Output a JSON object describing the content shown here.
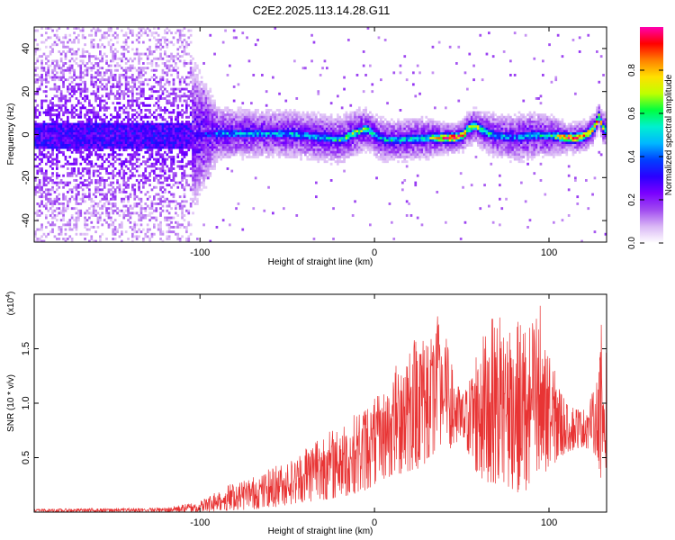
{
  "title": "C2E2.2025.113.14.28.G11",
  "chart_data": [
    {
      "type": "heatmap",
      "xlabel": "Height of straight line (km)",
      "ylabel": "Frequency (Hz)",
      "xlim": [
        -195,
        133
      ],
      "ylim": [
        -50,
        50
      ],
      "xticks": [
        -100,
        0,
        100
      ],
      "yticks": [
        -40,
        -20,
        0,
        20,
        40
      ],
      "colorbar": {
        "label": "Normalized spectral amplitude",
        "range": [
          0.0,
          1.0
        ],
        "ticks": [
          0.0,
          0.2,
          0.4,
          0.6,
          0.8
        ],
        "tick_labels": [
          "0.0",
          "0.2",
          "0.4",
          "0.6",
          "0.8"
        ],
        "colormap": [
          "#ffffff",
          "#d9b6f5",
          "#a04af0",
          "#7a00ff",
          "#2a00ff",
          "#0040ff",
          "#00b8ff",
          "#00f0d0",
          "#00ff40",
          "#c0ff00",
          "#ffe000",
          "#ff8000",
          "#ff0000",
          "#ff00b0"
        ]
      },
      "ridge": {
        "description": "peak frequency track (Hz) vs height (km)",
        "x": [
          -195,
          -150,
          -110,
          -90,
          -70,
          -50,
          -30,
          -20,
          -10,
          -5,
          0,
          5,
          15,
          30,
          40,
          45,
          50,
          53,
          57,
          60,
          65,
          70,
          80,
          90,
          100,
          110,
          115,
          120,
          125,
          128,
          130,
          133
        ],
        "y": [
          0,
          0,
          0,
          1,
          1,
          1,
          -1,
          -2,
          2,
          3,
          0,
          -2,
          -2,
          -1,
          -1,
          -1,
          0,
          3,
          5,
          3,
          1,
          0,
          -1,
          0,
          0,
          -1,
          -1,
          0,
          3,
          9,
          4,
          2
        ],
        "peak_amplitude_approx": [
          0.1,
          0.15,
          0.2,
          0.45,
          0.5,
          0.5,
          0.5,
          0.6,
          0.65,
          0.65,
          0.5,
          0.5,
          0.55,
          0.6,
          0.9,
          0.95,
          0.85,
          0.75,
          0.7,
          0.65,
          0.6,
          0.5,
          0.45,
          0.5,
          0.55,
          0.95,
          0.95,
          0.9,
          0.8,
          0.85,
          0.7,
          0.6
        ],
        "spread_hz": [
          40,
          40,
          35,
          10,
          9,
          9,
          9,
          9,
          9,
          8,
          8,
          8,
          8,
          8,
          6,
          6,
          6,
          7,
          7,
          7,
          8,
          8,
          9,
          9,
          8,
          6,
          6,
          6,
          6,
          5,
          6,
          8
        ]
      }
    },
    {
      "type": "line",
      "xlabel": "Height of straight line (km)",
      "ylabel": "SNR (10 * v/v)",
      "scale_label": "(x10",
      "scale_exponent": "4",
      "scale_suffix": ")",
      "xlim": [
        -195,
        133
      ],
      "ylim": [
        0,
        2.0
      ],
      "xticks": [
        -100,
        0,
        100
      ],
      "yticks": [
        0.5,
        1.0,
        1.5
      ],
      "ytick_labels": [
        "0.5",
        "1.0",
        "1.5"
      ],
      "color": "#e83434",
      "envelope": {
        "description": "approximate upper/lower bounds of the noisy SNR trace, units x10^4",
        "x": [
          -195,
          -120,
          -100,
          -95,
          -85,
          -75,
          -65,
          -55,
          -45,
          -35,
          -25,
          -15,
          -5,
          5,
          15,
          25,
          30,
          35,
          40,
          45,
          50,
          55,
          60,
          70,
          80,
          90,
          95,
          100,
          110,
          120,
          125,
          128,
          130,
          133
        ],
        "upper": [
          0.03,
          0.04,
          0.1,
          0.16,
          0.25,
          0.3,
          0.35,
          0.45,
          0.5,
          0.7,
          0.75,
          0.85,
          1.0,
          1.1,
          1.45,
          1.7,
          1.65,
          1.85,
          1.7,
          1.3,
          1.1,
          1.3,
          1.6,
          1.85,
          1.75,
          1.75,
          1.95,
          1.45,
          1.0,
          0.95,
          1.1,
          1.25,
          1.75,
          1.5
        ],
        "lower": [
          0.0,
          0.0,
          0.0,
          0.0,
          0.01,
          0.02,
          0.03,
          0.05,
          0.08,
          0.1,
          0.12,
          0.15,
          0.2,
          0.3,
          0.35,
          0.4,
          0.45,
          0.5,
          0.55,
          0.6,
          0.65,
          0.5,
          0.3,
          0.25,
          0.2,
          0.1,
          0.2,
          0.4,
          0.55,
          0.6,
          0.55,
          0.5,
          0.1,
          0.4
        ]
      }
    }
  ]
}
